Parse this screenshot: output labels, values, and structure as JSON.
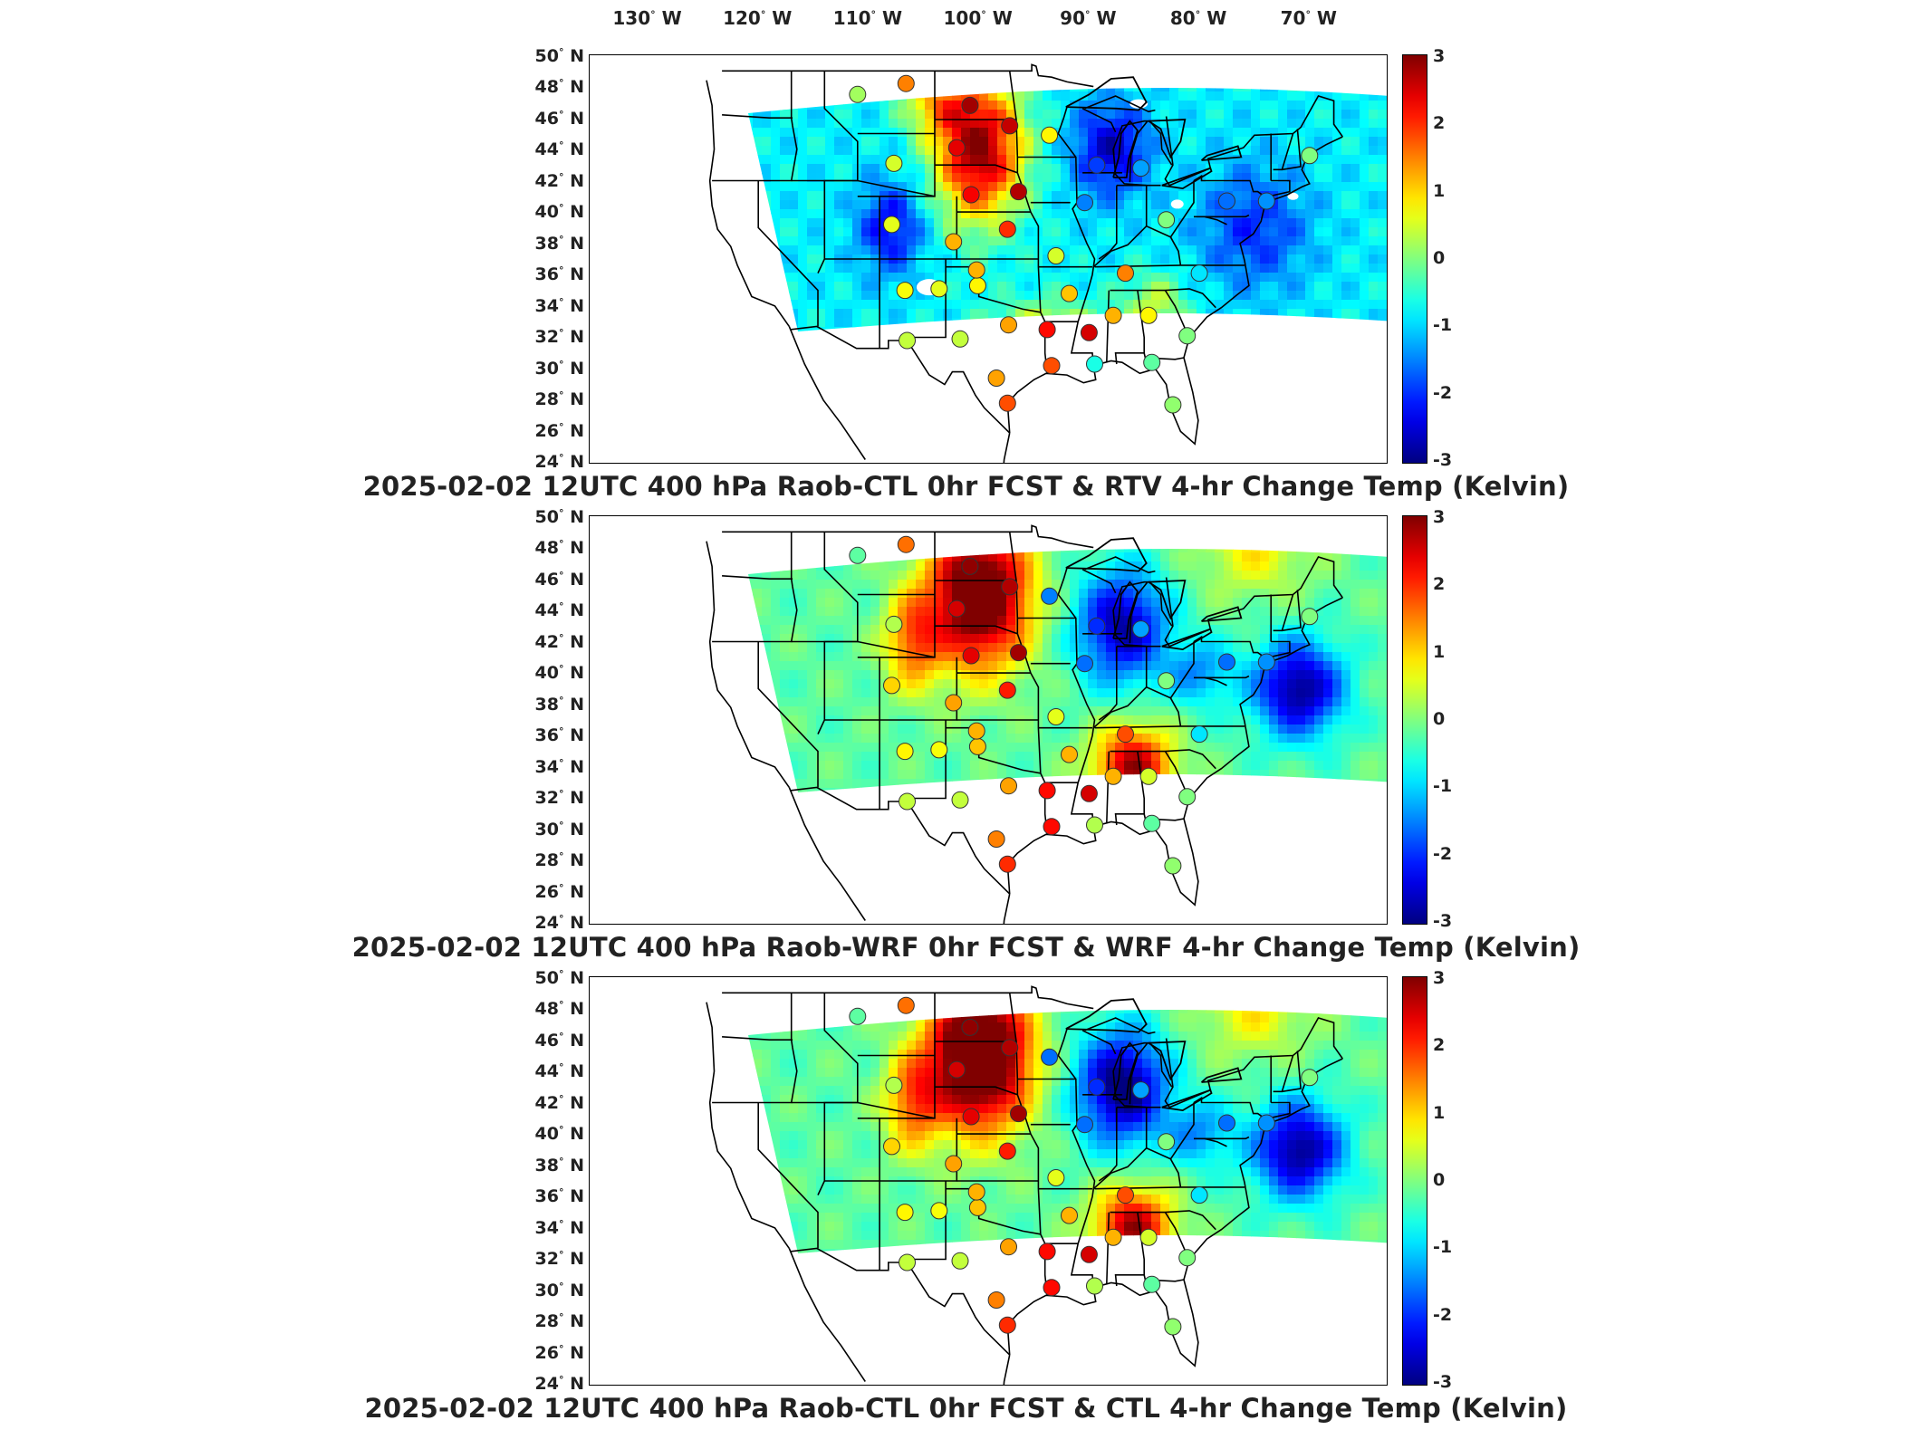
{
  "lon_ticks": [
    {
      "deg": "130",
      "hem": "W",
      "lon": -130
    },
    {
      "deg": "120",
      "hem": "W",
      "lon": -120
    },
    {
      "deg": "110",
      "hem": "W",
      "lon": -110
    },
    {
      "deg": "100",
      "hem": "W",
      "lon": -100
    },
    {
      "deg": "90",
      "hem": "W",
      "lon": -90
    },
    {
      "deg": "80",
      "hem": "W",
      "lon": -80
    },
    {
      "deg": "70",
      "hem": "W",
      "lon": -70
    }
  ],
  "lat_ticks": [
    {
      "deg": "50",
      "hem": "N",
      "lat": 50
    },
    {
      "deg": "48",
      "hem": "N",
      "lat": 48
    },
    {
      "deg": "46",
      "hem": "N",
      "lat": 46
    },
    {
      "deg": "44",
      "hem": "N",
      "lat": 44
    },
    {
      "deg": "42",
      "hem": "N",
      "lat": 42
    },
    {
      "deg": "40",
      "hem": "N",
      "lat": 40
    },
    {
      "deg": "38",
      "hem": "N",
      "lat": 38
    },
    {
      "deg": "36",
      "hem": "N",
      "lat": 36
    },
    {
      "deg": "34",
      "hem": "N",
      "lat": 34
    },
    {
      "deg": "32",
      "hem": "N",
      "lat": 32
    },
    {
      "deg": "30",
      "hem": "N",
      "lat": 30
    },
    {
      "deg": "28",
      "hem": "N",
      "lat": 28
    },
    {
      "deg": "26",
      "hem": "N",
      "lat": 26
    },
    {
      "deg": "24",
      "hem": "N",
      "lat": 24
    }
  ],
  "colorbar": {
    "min": -3,
    "max": 3,
    "ticks": [
      "3",
      "2",
      "1",
      "0",
      "-1",
      "-2",
      "-3"
    ],
    "colormap": [
      "#00008f",
      "#0000ff",
      "#0080ff",
      "#00ffff",
      "#80ff80",
      "#ffff00",
      "#ff8000",
      "#ff0000",
      "#800000"
    ]
  },
  "panels": [
    {
      "title": "2025-02-02 12UTC 400 hPa Raob-CTL 0hr FCST & RTV 4-hr Change Temp (Kelvin)",
      "style": "rtv"
    },
    {
      "title": "2025-02-02 12UTC 400 hPa Raob-WRF 0hr FCST & WRF 4-hr Change Temp (Kelvin)",
      "style": "wrf"
    },
    {
      "title": "2025-02-02 12UTC 400 hPa Raob-CTL 0hr FCST & CTL 4-hr Change Temp (Kelvin)",
      "style": "ctl"
    }
  ],
  "stations": [
    {
      "lon": -111.0,
      "lat": 47.5,
      "v": [
        0.2,
        -0.2,
        -0.2
      ]
    },
    {
      "lon": -106.6,
      "lat": 48.2,
      "v": [
        1.5,
        1.6,
        1.6
      ]
    },
    {
      "lon": -100.8,
      "lat": 46.8,
      "v": [
        2.8,
        2.9,
        2.9
      ]
    },
    {
      "lon": -97.2,
      "lat": 45.5,
      "v": [
        2.6,
        2.7,
        2.7
      ]
    },
    {
      "lon": -102.0,
      "lat": 44.1,
      "v": [
        2.4,
        2.5,
        2.5
      ]
    },
    {
      "lon": -107.7,
      "lat": 43.1,
      "v": [
        0.5,
        0.3,
        0.3
      ]
    },
    {
      "lon": -93.6,
      "lat": 44.9,
      "v": [
        0.8,
        -1.5,
        -1.6
      ]
    },
    {
      "lon": -89.3,
      "lat": 43.0,
      "v": [
        -1.9,
        -2.0,
        -2.0
      ]
    },
    {
      "lon": -85.3,
      "lat": 42.8,
      "v": [
        -1.3,
        -1.3,
        -1.3
      ]
    },
    {
      "lon": -100.7,
      "lat": 41.1,
      "v": [
        2.3,
        2.4,
        2.4
      ]
    },
    {
      "lon": -96.4,
      "lat": 41.3,
      "v": [
        2.7,
        2.8,
        2.8
      ]
    },
    {
      "lon": -90.4,
      "lat": 40.6,
      "v": [
        -1.5,
        -1.6,
        -1.6
      ]
    },
    {
      "lon": -83.0,
      "lat": 39.5,
      "v": [
        0.0,
        0.0,
        0.0
      ]
    },
    {
      "lon": -77.5,
      "lat": 40.7,
      "v": [
        -1.6,
        -1.6,
        -1.6
      ]
    },
    {
      "lon": -107.9,
      "lat": 39.2,
      "v": [
        0.6,
        1.0,
        1.0
      ]
    },
    {
      "lon": -102.3,
      "lat": 38.1,
      "v": [
        1.2,
        1.3,
        1.3
      ]
    },
    {
      "lon": -97.4,
      "lat": 38.9,
      "v": [
        2.0,
        2.1,
        2.1
      ]
    },
    {
      "lon": -93.0,
      "lat": 37.2,
      "v": [
        0.5,
        0.6,
        0.6
      ]
    },
    {
      "lon": -106.7,
      "lat": 35.0,
      "v": [
        0.7,
        0.8,
        0.8
      ]
    },
    {
      "lon": -103.6,
      "lat": 35.1,
      "v": [
        0.6,
        0.7,
        0.7
      ]
    },
    {
      "lon": -100.1,
      "lat": 35.3,
      "v": [
        0.8,
        1.1,
        1.1
      ]
    },
    {
      "lon": -100.2,
      "lat": 36.3,
      "v": [
        1.2,
        1.2,
        1.2
      ]
    },
    {
      "lon": -91.8,
      "lat": 34.8,
      "v": [
        1.1,
        1.2,
        1.2
      ]
    },
    {
      "lon": -86.7,
      "lat": 36.1,
      "v": [
        1.5,
        1.8,
        1.8
      ]
    },
    {
      "lon": -80.0,
      "lat": 36.1,
      "v": [
        -0.9,
        -0.9,
        -0.9
      ]
    },
    {
      "lon": -84.6,
      "lat": 33.4,
      "v": [
        0.8,
        0.5,
        0.5
      ]
    },
    {
      "lon": -87.8,
      "lat": 33.4,
      "v": [
        1.2,
        1.2,
        1.2
      ]
    },
    {
      "lon": -90.0,
      "lat": 32.3,
      "v": [
        2.5,
        2.5,
        2.5
      ]
    },
    {
      "lon": -93.8,
      "lat": 32.5,
      "v": [
        2.2,
        2.2,
        2.2
      ]
    },
    {
      "lon": -97.3,
      "lat": 32.8,
      "v": [
        1.3,
        1.3,
        1.3
      ]
    },
    {
      "lon": -101.7,
      "lat": 31.9,
      "v": [
        0.4,
        0.4,
        0.4
      ]
    },
    {
      "lon": -106.5,
      "lat": 31.8,
      "v": [
        0.4,
        0.4,
        0.4
      ]
    },
    {
      "lon": -81.1,
      "lat": 32.1,
      "v": [
        0.0,
        0.0,
        0.0
      ]
    },
    {
      "lon": -89.5,
      "lat": 30.3,
      "v": [
        -0.6,
        0.3,
        0.3
      ]
    },
    {
      "lon": -93.4,
      "lat": 30.2,
      "v": [
        1.8,
        2.2,
        2.2
      ]
    },
    {
      "lon": -98.4,
      "lat": 29.4,
      "v": [
        1.3,
        1.5,
        1.5
      ]
    },
    {
      "lon": -97.4,
      "lat": 27.8,
      "v": [
        1.8,
        2.0,
        2.0
      ]
    },
    {
      "lon": -82.4,
      "lat": 27.7,
      "v": [
        0.1,
        0.1,
        0.1
      ]
    },
    {
      "lon": -84.3,
      "lat": 30.4,
      "v": [
        -0.2,
        -0.2,
        -0.2
      ]
    },
    {
      "lon": -70.0,
      "lat": 43.6,
      "v": [
        0.0,
        0.0,
        0.0
      ]
    },
    {
      "lon": -73.9,
      "lat": 40.7,
      "v": [
        -1.4,
        -1.4,
        -1.4
      ]
    }
  ]
}
